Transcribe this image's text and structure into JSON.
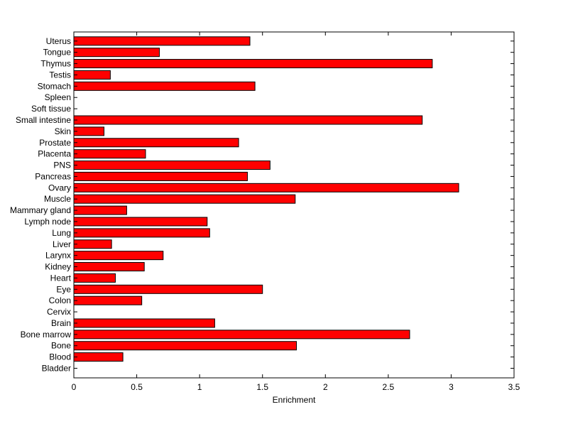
{
  "chart_data": {
    "type": "bar",
    "orientation": "horizontal",
    "title": "",
    "xlabel": "Enrichment",
    "ylabel": "",
    "xlim": [
      0,
      3.5
    ],
    "x_ticks": [
      "0",
      "0.5",
      "1",
      "1.5",
      "2",
      "2.5",
      "3",
      "3.5"
    ],
    "grid": false,
    "categories": [
      "Bladder",
      "Blood",
      "Bone",
      "Bone marrow",
      "Brain",
      "Cervix",
      "Colon",
      "Eye",
      "Heart",
      "Kidney",
      "Larynx",
      "Liver",
      "Lung",
      "Lymph node",
      "Mammary gland",
      "Muscle",
      "Ovary",
      "Pancreas",
      "PNS",
      "Placenta",
      "Prostate",
      "Skin",
      "Small intestine",
      "Soft tissue",
      "Spleen",
      "Stomach",
      "Testis",
      "Thymus",
      "Tongue",
      "Uterus"
    ],
    "values": [
      0,
      0.39,
      1.77,
      2.67,
      1.12,
      0,
      0.54,
      1.5,
      0.33,
      0.56,
      0.71,
      0.3,
      1.08,
      1.06,
      0.42,
      1.76,
      3.06,
      1.38,
      1.56,
      0.57,
      1.31,
      0.24,
      2.77,
      0,
      0,
      1.44,
      0.29,
      2.85,
      0.68,
      1.4
    ],
    "bar_color": "#ff0000",
    "edge_color": "#000000"
  }
}
